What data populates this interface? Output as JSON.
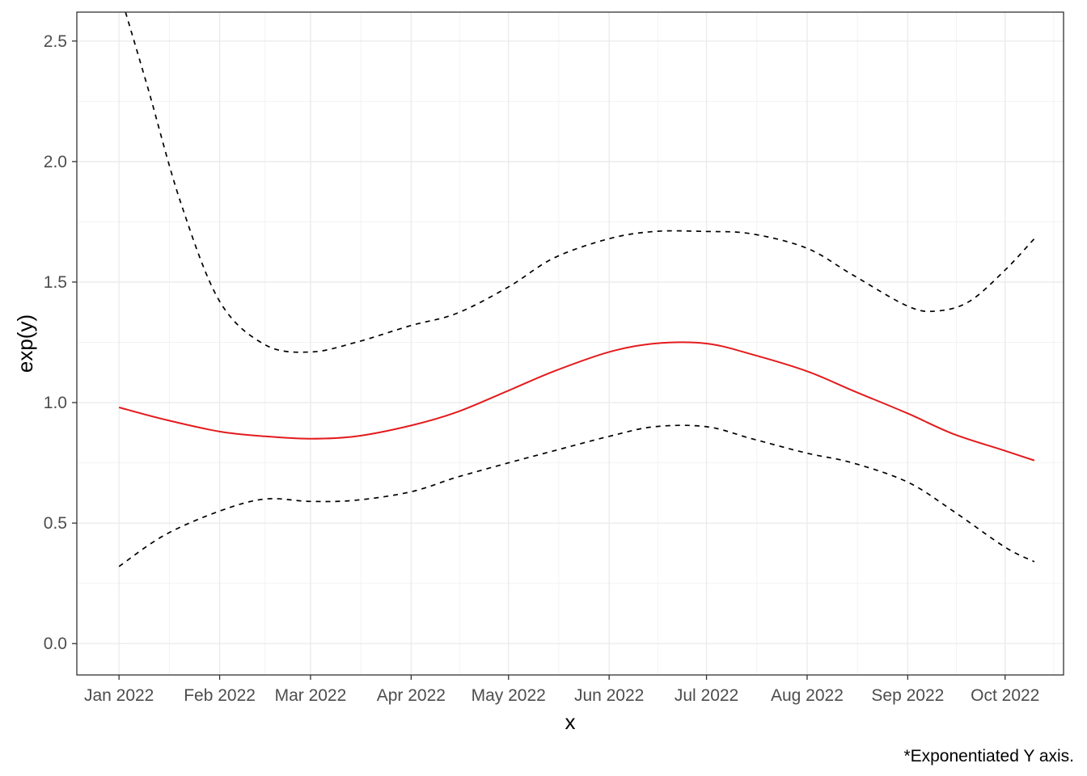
{
  "chart_data": {
    "type": "line",
    "xlabel": "x",
    "ylabel": "exp(y)",
    "caption": "*Exponentiated Y axis.",
    "x_ticks": [
      {
        "date": "2022-01-01",
        "label": "Jan 2022"
      },
      {
        "date": "2022-02-01",
        "label": "Feb 2022"
      },
      {
        "date": "2022-03-01",
        "label": "Mar 2022"
      },
      {
        "date": "2022-04-01",
        "label": "Apr 2022"
      },
      {
        "date": "2022-05-01",
        "label": "May 2022"
      },
      {
        "date": "2022-06-01",
        "label": "Jun 2022"
      },
      {
        "date": "2022-07-01",
        "label": "Jul 2022"
      },
      {
        "date": "2022-08-01",
        "label": "Aug 2022"
      },
      {
        "date": "2022-09-01",
        "label": "Sep 2022"
      },
      {
        "date": "2022-10-01",
        "label": "Oct 2022"
      }
    ],
    "y_ticks": [
      {
        "value": 0.0,
        "label": "0.0"
      },
      {
        "value": 0.5,
        "label": "0.5"
      },
      {
        "value": 1.0,
        "label": "1.0"
      },
      {
        "value": 1.5,
        "label": "1.5"
      },
      {
        "value": 2.0,
        "label": "2.0"
      },
      {
        "value": 2.5,
        "label": "2.5"
      }
    ],
    "xlim": [
      "2021-12-19",
      "2022-10-19"
    ],
    "ylim": [
      -0.13,
      2.62
    ],
    "grid": true,
    "series": [
      {
        "role": "estimate",
        "color": "#e41a1c",
        "style": "solid",
        "points": [
          [
            "2022-01-01",
            0.98
          ],
          [
            "2022-01-15",
            0.93
          ],
          [
            "2022-02-01",
            0.88
          ],
          [
            "2022-02-15",
            0.86
          ],
          [
            "2022-03-01",
            0.85
          ],
          [
            "2022-03-15",
            0.86
          ],
          [
            "2022-04-01",
            0.905
          ],
          [
            "2022-04-15",
            0.96
          ],
          [
            "2022-05-01",
            1.05
          ],
          [
            "2022-05-15",
            1.13
          ],
          [
            "2022-06-01",
            1.21
          ],
          [
            "2022-06-15",
            1.245
          ],
          [
            "2022-07-01",
            1.245
          ],
          [
            "2022-07-15",
            1.2
          ],
          [
            "2022-08-01",
            1.13
          ],
          [
            "2022-08-15",
            1.05
          ],
          [
            "2022-09-01",
            0.955
          ],
          [
            "2022-09-15",
            0.87
          ],
          [
            "2022-10-01",
            0.8
          ],
          [
            "2022-10-10",
            0.76
          ]
        ]
      },
      {
        "role": "upper",
        "color": "#000000",
        "style": "dashed",
        "points": [
          [
            "2022-01-03",
            2.62
          ],
          [
            "2022-01-10",
            2.3
          ],
          [
            "2022-01-20",
            1.83
          ],
          [
            "2022-02-01",
            1.42
          ],
          [
            "2022-02-15",
            1.24
          ],
          [
            "2022-03-01",
            1.21
          ],
          [
            "2022-03-15",
            1.25
          ],
          [
            "2022-04-01",
            1.32
          ],
          [
            "2022-04-15",
            1.37
          ],
          [
            "2022-05-01",
            1.48
          ],
          [
            "2022-05-15",
            1.6
          ],
          [
            "2022-06-01",
            1.68
          ],
          [
            "2022-06-15",
            1.71
          ],
          [
            "2022-07-01",
            1.71
          ],
          [
            "2022-07-15",
            1.7
          ],
          [
            "2022-08-01",
            1.64
          ],
          [
            "2022-08-15",
            1.53
          ],
          [
            "2022-09-01",
            1.4
          ],
          [
            "2022-09-10",
            1.38
          ],
          [
            "2022-09-20",
            1.42
          ],
          [
            "2022-10-01",
            1.55
          ],
          [
            "2022-10-10",
            1.68
          ]
        ]
      },
      {
        "role": "lower",
        "color": "#000000",
        "style": "dashed",
        "points": [
          [
            "2022-01-01",
            0.32
          ],
          [
            "2022-01-15",
            0.45
          ],
          [
            "2022-02-01",
            0.55
          ],
          [
            "2022-02-15",
            0.6
          ],
          [
            "2022-03-01",
            0.59
          ],
          [
            "2022-03-15",
            0.595
          ],
          [
            "2022-04-01",
            0.63
          ],
          [
            "2022-04-15",
            0.69
          ],
          [
            "2022-05-01",
            0.75
          ],
          [
            "2022-05-15",
            0.8
          ],
          [
            "2022-06-01",
            0.86
          ],
          [
            "2022-06-15",
            0.9
          ],
          [
            "2022-07-01",
            0.9
          ],
          [
            "2022-07-15",
            0.85
          ],
          [
            "2022-08-01",
            0.79
          ],
          [
            "2022-08-15",
            0.75
          ],
          [
            "2022-09-01",
            0.67
          ],
          [
            "2022-09-15",
            0.55
          ],
          [
            "2022-10-01",
            0.4
          ],
          [
            "2022-10-10",
            0.34
          ]
        ]
      }
    ]
  }
}
